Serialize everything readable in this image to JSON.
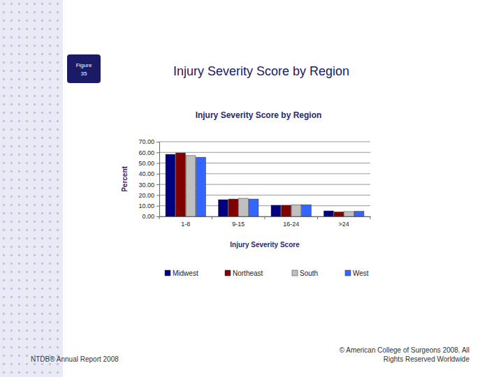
{
  "slide": {
    "title": "Injury Severity Score by Region",
    "figure": {
      "label": "Figure",
      "number": "35"
    },
    "footer_left": "NTDB® Annual Report 2008",
    "footer_right": [
      "© American College of Surgeons 2008.  All",
      "Rights Reserved Worldwide"
    ]
  },
  "chart_data": {
    "type": "bar",
    "title": "Injury Severity Score by Region",
    "x_label": "Injury Severity Score",
    "y_label": "Percent",
    "categories": [
      "1-8",
      "9-15",
      "16-24",
      ">24"
    ],
    "series": [
      {
        "name": "Midwest",
        "color": "#000080",
        "values": [
          58.2,
          15.7,
          10.5,
          5.2
        ]
      },
      {
        "name": "Northeast",
        "color": "#800000",
        "values": [
          59.5,
          16.3,
          10.5,
          4.2
        ]
      },
      {
        "name": "South",
        "color": "#c0c0c0",
        "values": [
          57.0,
          17.0,
          11.0,
          4.6
        ]
      },
      {
        "name": "West",
        "color": "#3366ff",
        "values": [
          55.5,
          16.3,
          11.0,
          4.8
        ]
      }
    ],
    "ylim": [
      0,
      70
    ],
    "yticks": [
      {
        "value": 0,
        "label": "0.00"
      },
      {
        "value": 10,
        "label": "10.00"
      },
      {
        "value": 20,
        "label": "20.00"
      },
      {
        "value": 30,
        "label": "30.00"
      },
      {
        "value": 40,
        "label": "40.00"
      },
      {
        "value": 50,
        "label": "50.00"
      },
      {
        "value": 60,
        "label": "60.00"
      },
      {
        "value": 70,
        "label": "70.00"
      }
    ],
    "grid": true,
    "legend": "bottom"
  }
}
